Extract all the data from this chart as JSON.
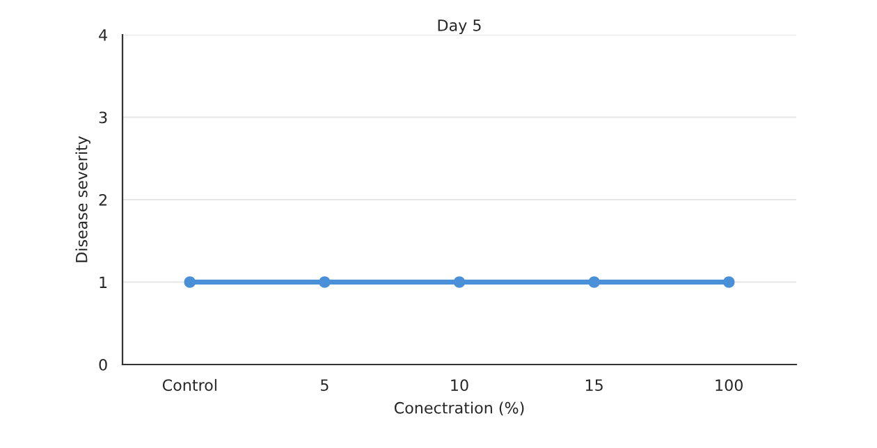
{
  "chart_data": {
    "type": "line",
    "title": "Day 5",
    "xlabel": "Conectration (%)",
    "ylabel": "Disease severity",
    "categories": [
      "Control",
      "5",
      "10",
      "15",
      "100"
    ],
    "series": [
      {
        "color": "#4a90d9",
        "values": [
          1,
          1,
          1,
          1,
          1
        ]
      }
    ],
    "ylim": [
      0,
      4
    ],
    "yticks": [
      0,
      1,
      2,
      3,
      4
    ],
    "grid": "y",
    "marker": "circle",
    "line_style": "solid",
    "legend": false
  }
}
